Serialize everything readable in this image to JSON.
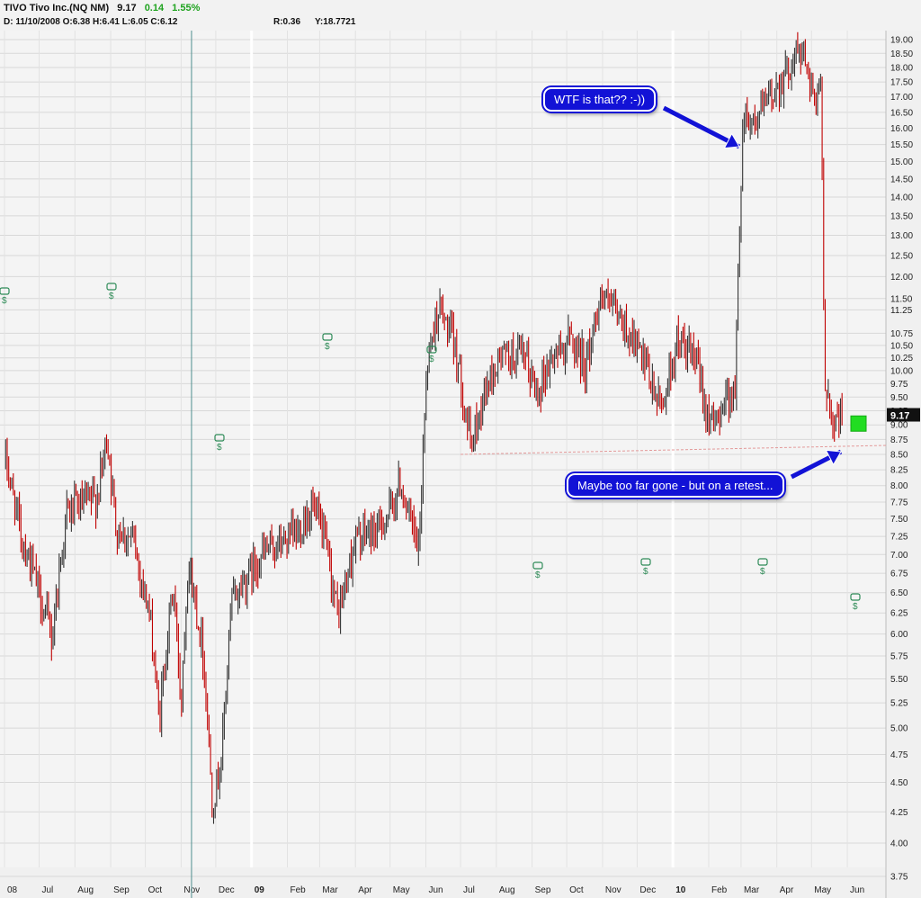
{
  "header": {
    "ticker": "TIVO Tivo Inc.(NQ NM)",
    "last": "9.17",
    "change": "0.14",
    "change_pct": "1.55%",
    "ohlc": "D: 11/10/2008 O:6.38 H:6.41 L:6.05 C:6.12",
    "r_value": "R:0.36",
    "y_value": "Y:18.7721"
  },
  "last_price_tag": "9.17",
  "annotations": [
    {
      "text": "WTF is that?? :-))"
    },
    {
      "text": "Maybe too far gone - but on a retest..."
    }
  ],
  "colors": {
    "up": "#333333",
    "down": "#c00000",
    "callout": "#1212d6",
    "signal": "#2e8b57",
    "marker": "#22dd22"
  },
  "chart_data": {
    "type": "candlestick",
    "title": "TIVO Tivo Inc.(NQ NM)",
    "x_ticks": [
      "08",
      "Jul",
      "Aug",
      "Sep",
      "Oct",
      "Nov",
      "Dec",
      "09",
      "Feb",
      "Mar",
      "Apr",
      "May",
      "Jun",
      "Jul",
      "Aug",
      "Sep",
      "Oct",
      "Nov",
      "Dec",
      "10",
      "Feb",
      "Mar",
      "Apr",
      "May",
      "Jun"
    ],
    "y_ticks": [
      "19.00",
      "18.50",
      "18.00",
      "17.50",
      "17.00",
      "16.50",
      "16.00",
      "15.50",
      "15.00",
      "14.50",
      "14.00",
      "13.50",
      "13.00",
      "12.50",
      "12.00",
      "11.50",
      "11.25",
      "10.75",
      "10.50",
      "10.25",
      "10.00",
      "9.75",
      "9.50",
      "9.25",
      "9.00",
      "8.75",
      "8.50",
      "8.25",
      "8.00",
      "7.75",
      "7.50",
      "7.25",
      "7.00",
      "6.75",
      "6.50",
      "6.25",
      "6.00",
      "5.75",
      "5.50",
      "5.25",
      "5.00",
      "4.75",
      "4.50",
      "4.25",
      "4.00",
      "3.75"
    ],
    "y_scale": "log",
    "ylim": [
      3.75,
      19.2
    ],
    "grid": true,
    "support_line": 8.5,
    "trend": [
      [
        "2008-06-02",
        8.4
      ],
      [
        "2008-06-15",
        7.3
      ],
      [
        "2008-07-01",
        6.5
      ],
      [
        "2008-07-12",
        5.95
      ],
      [
        "2008-07-25",
        7.6
      ],
      [
        "2008-08-20",
        7.8
      ],
      [
        "2008-08-29",
        8.8
      ],
      [
        "2008-09-05",
        7.4
      ],
      [
        "2008-09-20",
        7.2
      ],
      [
        "2008-10-05",
        6.2
      ],
      [
        "2008-10-13",
        5.05
      ],
      [
        "2008-10-25",
        6.6
      ],
      [
        "2008-11-01",
        5.25
      ],
      [
        "2008-11-07",
        6.9
      ],
      [
        "2008-11-20",
        5.8
      ],
      [
        "2008-11-28",
        4.3
      ],
      [
        "2008-12-06",
        4.7
      ],
      [
        "2008-12-15",
        6.4
      ],
      [
        "2009-01-10",
        7.0
      ],
      [
        "2009-02-10",
        7.3
      ],
      [
        "2009-02-22",
        7.7
      ],
      [
        "2009-03-05",
        7.2
      ],
      [
        "2009-03-17",
        6.2
      ],
      [
        "2009-04-01",
        7.2
      ],
      [
        "2009-04-20",
        7.35
      ],
      [
        "2009-05-01",
        7.6
      ],
      [
        "2009-05-10",
        8.05
      ],
      [
        "2009-05-15",
        7.7
      ],
      [
        "2009-05-26",
        7.0
      ],
      [
        "2009-06-02",
        10.2
      ],
      [
        "2009-06-12",
        11.3
      ],
      [
        "2009-06-22",
        10.7
      ],
      [
        "2009-06-28",
        10.3
      ],
      [
        "2009-07-10",
        8.6
      ],
      [
        "2009-07-22",
        9.6
      ],
      [
        "2009-08-05",
        10.3
      ],
      [
        "2009-08-25",
        10.25
      ],
      [
        "2009-09-05",
        9.6
      ],
      [
        "2009-09-20",
        10.3
      ],
      [
        "2009-10-05",
        10.65
      ],
      [
        "2009-10-18",
        10.1
      ],
      [
        "2009-10-30",
        11.6
      ],
      [
        "2009-11-12",
        11.15
      ],
      [
        "2009-11-28",
        10.6
      ],
      [
        "2009-12-10",
        9.9
      ],
      [
        "2009-12-22",
        9.3
      ],
      [
        "2010-01-05",
        10.6
      ],
      [
        "2010-01-20",
        10.2
      ],
      [
        "2010-02-04",
        8.9
      ],
      [
        "2010-02-15",
        9.5
      ],
      [
        "2010-02-24",
        9.6
      ],
      [
        "2010-03-03",
        16.5
      ],
      [
        "2010-03-13",
        16.2
      ],
      [
        "2010-03-30",
        17.2
      ],
      [
        "2010-04-10",
        17.9
      ],
      [
        "2010-04-20",
        18.6
      ],
      [
        "2010-04-29",
        18.0
      ],
      [
        "2010-05-05",
        16.5
      ],
      [
        "2010-05-09",
        17.5
      ],
      [
        "2010-05-12",
        10.0
      ],
      [
        "2010-05-20",
        9.0
      ],
      [
        "2010-05-28",
        9.17
      ]
    ]
  }
}
